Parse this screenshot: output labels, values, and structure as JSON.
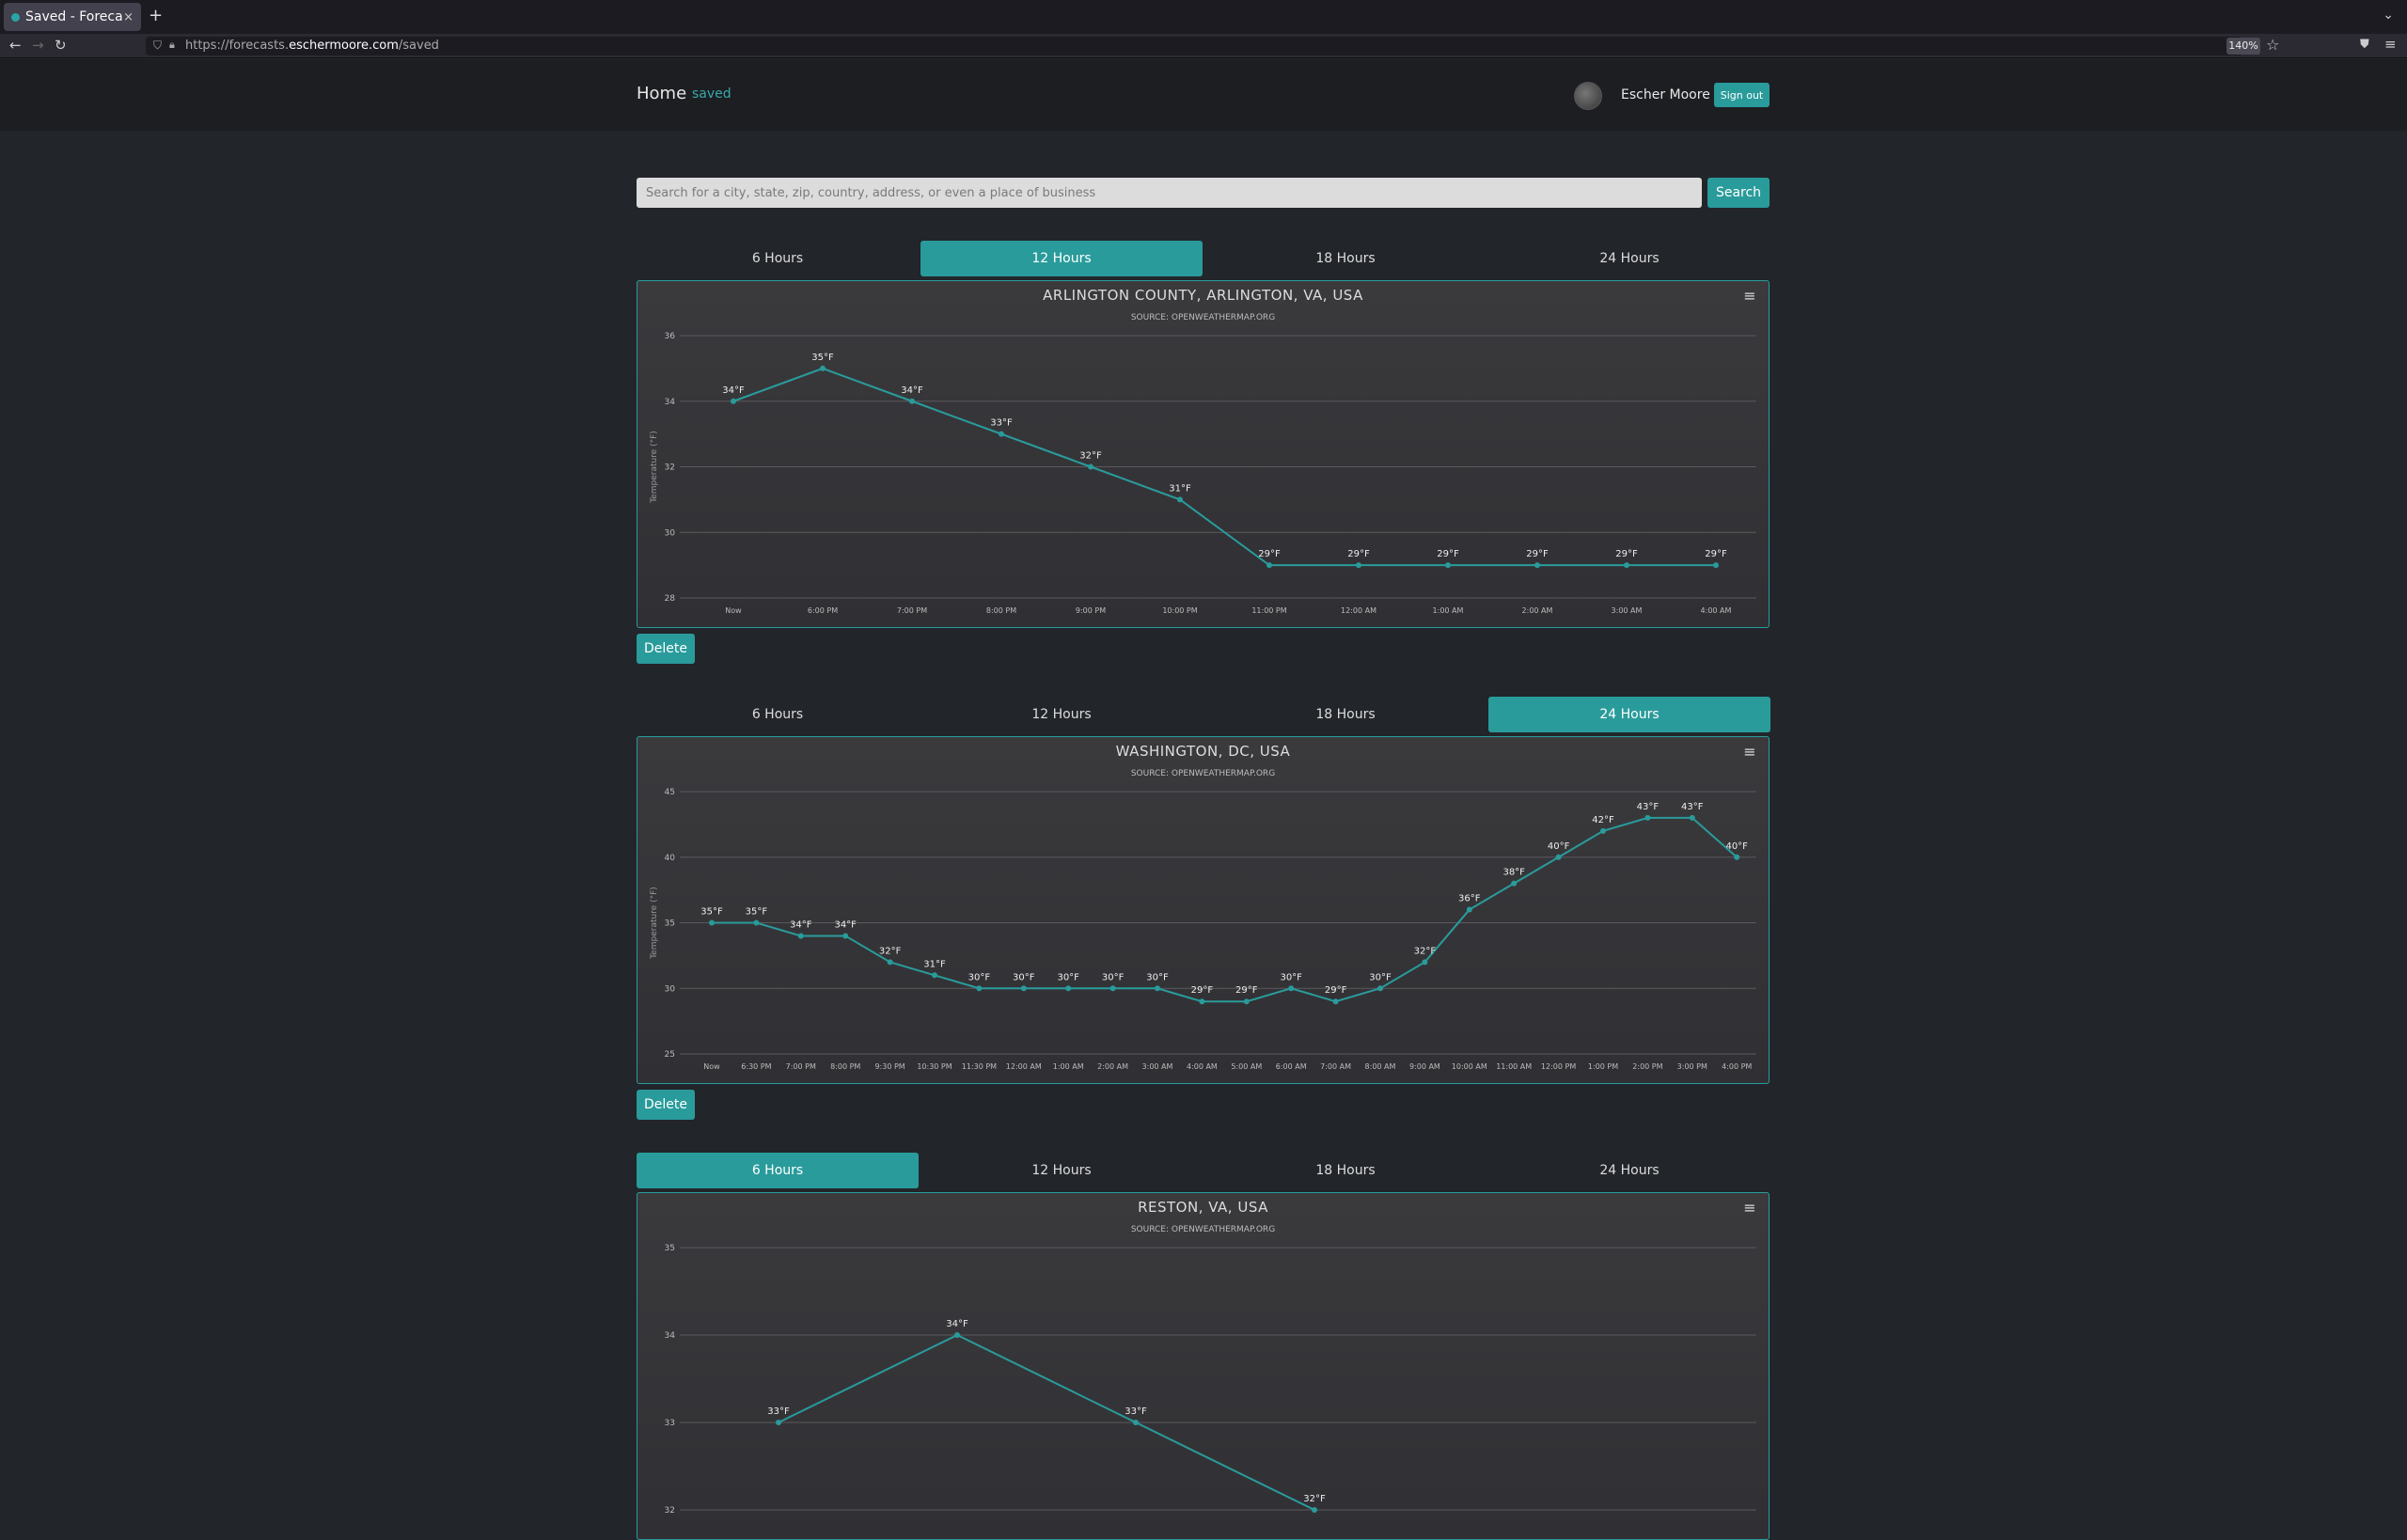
{
  "browser": {
    "tab_title": "Saved - Forecasts",
    "tab_close": "×",
    "new_tab": "+",
    "url_prefix": "https://forecasts.",
    "url_host": "eschermoore.com",
    "url_path": "/saved",
    "zoom": "140%"
  },
  "header": {
    "home_label": "Home",
    "saved_label": "saved",
    "username": "Escher Moore",
    "signout_label": "Sign out"
  },
  "search": {
    "placeholder": "Search for a city, state, zip, country, address, or even a place of business",
    "button_label": "Search"
  },
  "tab_labels": [
    "6 Hours",
    "12 Hours",
    "18 Hours",
    "24 Hours"
  ],
  "delete_label": "Delete",
  "chart_data": [
    {
      "type": "line",
      "title": "ARLINGTON COUNTY, ARLINGTON, VA, USA",
      "subtitle": "SOURCE: OPENWEATHERMAP.ORG",
      "ylabel": "Temperature (°F)",
      "active_tab": 1,
      "ylim": [
        28,
        36
      ],
      "yticks": [
        28,
        30,
        32,
        34,
        36
      ],
      "color": "#2a9b9b",
      "categories": [
        "Now",
        "6:00 PM",
        "7:00 PM",
        "8:00 PM",
        "9:00 PM",
        "10:00 PM",
        "11:00 PM",
        "12:00 AM",
        "1:00 AM",
        "2:00 AM",
        "3:00 AM",
        "4:00 AM"
      ],
      "values": [
        34,
        35,
        34,
        33,
        32,
        31,
        29,
        29,
        29,
        29,
        29,
        29
      ],
      "data_labels": [
        "34°F",
        "35°F",
        "34°F",
        "33°F",
        "32°F",
        "31°F",
        "29°F",
        "29°F",
        "29°F",
        "29°F",
        "29°F",
        "29°F"
      ]
    },
    {
      "type": "line",
      "title": "WASHINGTON, DC, USA",
      "subtitle": "SOURCE: OPENWEATHERMAP.ORG",
      "ylabel": "Temperature (°F)",
      "active_tab": 3,
      "ylim": [
        25,
        45
      ],
      "yticks": [
        25,
        30,
        35,
        40,
        45
      ],
      "color": "#2a9b9b",
      "categories": [
        "Now",
        "6:30 PM",
        "7:00 PM",
        "8:00 PM",
        "9:30 PM",
        "10:30 PM",
        "11:30 PM",
        "12:00 AM",
        "1:00 AM",
        "2:00 AM",
        "3:00 AM",
        "4:00 AM",
        "5:00 AM",
        "6:00 AM",
        "7:00 AM",
        "8:00 AM",
        "9:00 AM",
        "10:00 AM",
        "11:00 AM",
        "12:00 PM",
        "1:00 PM",
        "2:00 PM",
        "3:00 PM",
        "4:00 PM"
      ],
      "values": [
        35,
        35,
        34,
        34,
        32,
        31,
        30,
        30,
        30,
        30,
        30,
        29,
        29,
        30,
        29,
        30,
        32,
        36,
        38,
        40,
        42,
        43,
        43,
        40
      ],
      "data_labels": [
        "35°F",
        "35°F",
        "34°F",
        "34°F",
        "32°F",
        "31°F",
        "30°F",
        "30°F",
        "30°F",
        "30°F",
        "30°F",
        "29°F",
        "29°F",
        "30°F",
        "29°F",
        "30°F",
        "32°F",
        "36°F",
        "38°F",
        "40°F",
        "42°F",
        "43°F",
        "43°F",
        "40°F"
      ]
    },
    {
      "type": "line",
      "title": "RESTON, VA, USA",
      "subtitle": "SOURCE: OPENWEATHERMAP.ORG",
      "ylabel": "",
      "active_tab": 0,
      "ylim": [
        32,
        35
      ],
      "yticks": [
        32,
        33,
        34,
        35
      ],
      "color": "#2a9b9b",
      "categories": [
        "",
        "",
        "",
        ""
      ],
      "values": [
        33,
        34,
        33,
        32
      ],
      "data_labels": [
        "33°F",
        "34°F",
        "33°F",
        "32°F"
      ]
    }
  ]
}
